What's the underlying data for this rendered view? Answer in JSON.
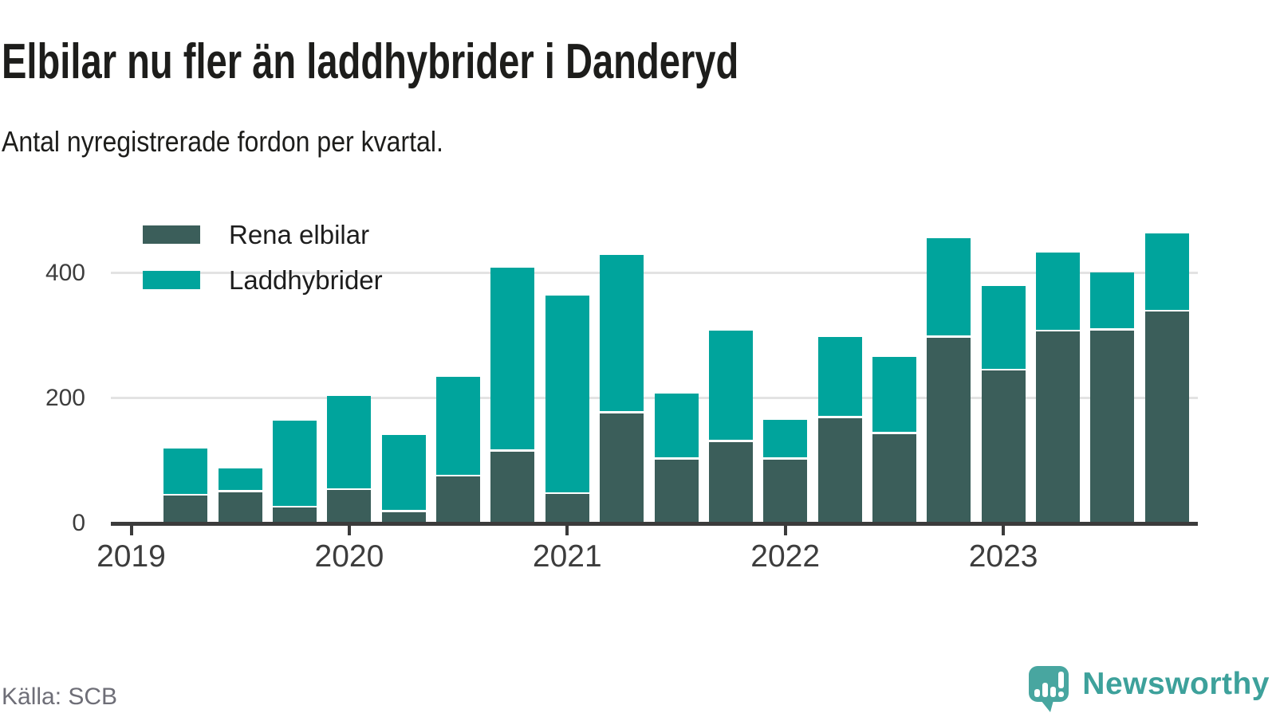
{
  "header": {
    "title": "Elbilar nu fler än laddhybrider i Danderyd",
    "subtitle": "Antal nyregistrerade fordon per kvartal."
  },
  "chart_data": {
    "type": "bar",
    "stacked": true,
    "x": [
      "2019 K2",
      "2019 K3",
      "2019 K4",
      "2020 K1",
      "2020 K2",
      "2020 K3",
      "2020 K4",
      "2021 K1",
      "2021 K2",
      "2021 K3",
      "2021 K4",
      "2022 K1",
      "2022 K2",
      "2022 K3",
      "2022 K4",
      "2023 K1",
      "2023 K2",
      "2023 K3",
      "2023 K4"
    ],
    "series": [
      {
        "name": "Rena elbilar",
        "color": "#3b5e5a",
        "values": [
          44,
          50,
          25,
          53,
          18,
          75,
          115,
          47,
          176,
          102,
          130,
          102,
          168,
          143,
          297,
          244,
          306,
          308,
          338
        ]
      },
      {
        "name": "Laddhybrider",
        "color": "#00a49c",
        "values": [
          76,
          38,
          139,
          151,
          123,
          159,
          294,
          317,
          253,
          106,
          178,
          63,
          130,
          123,
          159,
          135,
          126,
          93,
          125
        ]
      }
    ],
    "y_ticks": [
      0,
      200,
      400
    ],
    "x_tick_labels": [
      "2019",
      "2020",
      "2021",
      "2022",
      "2023"
    ],
    "ylim": [
      0,
      475
    ],
    "grid": "horizontal",
    "legend_position": "top-left-inside"
  },
  "footer": {
    "source": "Källa: SCB",
    "brand": "Newsworthy"
  },
  "colors": {
    "grid": "#e3e3e3",
    "axis": "#3b3b3b",
    "logo_bubble": "#48a6a0",
    "logo_text": "#3da19b"
  }
}
